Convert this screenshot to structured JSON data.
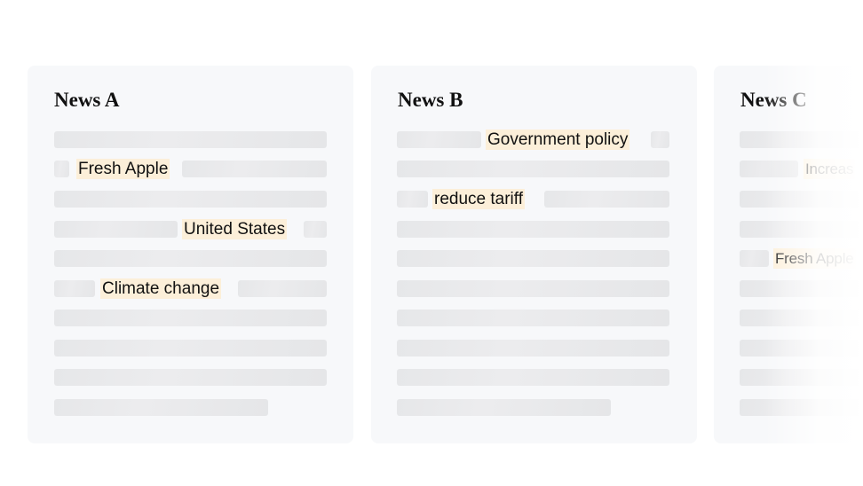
{
  "cards": [
    {
      "title": "News A",
      "highlights": [
        "Fresh Apple",
        "United States",
        "Climate change"
      ]
    },
    {
      "title": "News B",
      "highlights": [
        "Government policy",
        "reduce tariff"
      ]
    },
    {
      "title": "News C",
      "highlights": [
        "Increas",
        "Fresh Apple"
      ]
    }
  ],
  "colors": {
    "highlight": "#fcefd9",
    "card": "#f7f8fa",
    "skeleton": "#e8e9eb"
  }
}
